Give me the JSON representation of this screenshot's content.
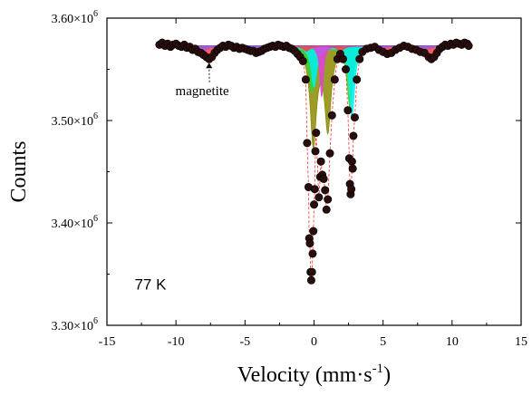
{
  "chart_data": {
    "type": "scatter",
    "title": "",
    "xlabel": "Velocity (mm·s",
    "xlabel_superscript": "-1",
    "xlabel_suffix": ")",
    "ylabel": "Counts",
    "xlim": [
      -15,
      15
    ],
    "ylim": [
      3300000,
      3600000
    ],
    "x_ticks": [
      -15,
      -10,
      -5,
      0,
      5,
      10,
      15
    ],
    "x_tick_labels": [
      "-15",
      "-10",
      "-5",
      "0",
      "5",
      "10",
      "15"
    ],
    "y_ticks": [
      3300000,
      3400000,
      3500000,
      3600000
    ],
    "y_tick_labels": [
      {
        "mantissa": "3.30×10",
        "exponent": "6"
      },
      {
        "mantissa": "3.40×10",
        "exponent": "6"
      },
      {
        "mantissa": "3.50×10",
        "exponent": "6"
      },
      {
        "mantissa": "3.60×10",
        "exponent": "6"
      }
    ],
    "grid": false,
    "legend": false,
    "annotations": [
      {
        "text": "magnetite",
        "x": -8.1,
        "y": 3525000,
        "arrow_to": {
          "x": -7.6,
          "y": 3560000
        }
      },
      {
        "text": "77 K",
        "x": -13.0,
        "y": 3335000
      }
    ],
    "baseline": 3573000,
    "fit_components": [
      {
        "name": "doublet-olive",
        "color": "#8b8b00",
        "lines": [
          {
            "center": -0.05,
            "depth": 95000,
            "width": 0.55
          },
          {
            "center": 1.0,
            "depth": 80000,
            "width": 0.55
          }
        ]
      },
      {
        "name": "doublet-green",
        "color": "#33d633",
        "lines": [
          {
            "center": -0.15,
            "depth": 45000,
            "width": 0.6
          },
          {
            "center": 2.6,
            "depth": 60000,
            "width": 0.5
          }
        ]
      },
      {
        "name": "doublet-cyan",
        "color": "#00f0f0",
        "lines": [
          {
            "center": 0.0,
            "depth": 40000,
            "width": 0.5
          },
          {
            "center": 2.75,
            "depth": 70000,
            "width": 0.45
          }
        ]
      },
      {
        "name": "doublet-magenta",
        "color": "#e040e0",
        "lines": [
          {
            "center": 0.55,
            "depth": 50000,
            "width": 0.3
          }
        ]
      },
      {
        "name": "sextet-red",
        "color": "#ff4040",
        "lines": [
          {
            "center": -7.6,
            "depth": 13000,
            "width": 0.6
          },
          {
            "center": -4.0,
            "depth": 7000,
            "width": 0.6
          },
          {
            "center": -0.55,
            "depth": 5000,
            "width": 0.6
          },
          {
            "center": 1.9,
            "depth": 5000,
            "width": 0.6
          },
          {
            "center": 5.3,
            "depth": 8000,
            "width": 0.6
          },
          {
            "center": 8.5,
            "depth": 13000,
            "width": 0.6
          }
        ]
      },
      {
        "name": "sextet-purple",
        "color": "#9a5ad0",
        "lines": [
          {
            "center": -8.0,
            "depth": 5000,
            "width": 0.8
          },
          {
            "center": -4.5,
            "depth": 3500,
            "width": 0.8
          },
          {
            "center": 4.8,
            "depth": 3500,
            "width": 0.8
          },
          {
            "center": 8.0,
            "depth": 5000,
            "width": 0.8
          }
        ]
      }
    ],
    "fit_line_color": "#ff3333",
    "data_points": [
      [
        -11.2,
        3574000
      ],
      [
        -11.0,
        3576000
      ],
      [
        -10.8,
        3573000
      ],
      [
        -10.6,
        3575000
      ],
      [
        -10.4,
        3572000
      ],
      [
        -10.2,
        3574000
      ],
      [
        -10.0,
        3575000
      ],
      [
        -9.8,
        3573000
      ],
      [
        -9.6,
        3572000
      ],
      [
        -9.4,
        3574000
      ],
      [
        -9.2,
        3571000
      ],
      [
        -9.0,
        3572000
      ],
      [
        -8.8,
        3569000
      ],
      [
        -8.6,
        3570000
      ],
      [
        -8.4,
        3567000
      ],
      [
        -8.2,
        3566000
      ],
      [
        -8.0,
        3564000
      ],
      [
        -7.8,
        3562000
      ],
      [
        -7.6,
        3560000
      ],
      [
        -7.4,
        3562000
      ],
      [
        -7.2,
        3566000
      ],
      [
        -7.0,
        3569000
      ],
      [
        -6.8,
        3571000
      ],
      [
        -6.6,
        3573000
      ],
      [
        -6.4,
        3572000
      ],
      [
        -6.2,
        3574000
      ],
      [
        -6.0,
        3573000
      ],
      [
        -5.8,
        3571000
      ],
      [
        -5.6,
        3572000
      ],
      [
        -5.4,
        3570000
      ],
      [
        -5.2,
        3571000
      ],
      [
        -5.0,
        3570000
      ],
      [
        -4.8,
        3569000
      ],
      [
        -4.6,
        3568000
      ],
      [
        -4.4,
        3568000
      ],
      [
        -4.2,
        3566000
      ],
      [
        -4.0,
        3567000
      ],
      [
        -3.8,
        3568000
      ],
      [
        -3.6,
        3570000
      ],
      [
        -3.4,
        3571000
      ],
      [
        -3.2,
        3572000
      ],
      [
        -3.0,
        3573000
      ],
      [
        -2.8,
        3572000
      ],
      [
        -2.6,
        3574000
      ],
      [
        -2.4,
        3573000
      ],
      [
        -2.2,
        3572000
      ],
      [
        -2.0,
        3573000
      ],
      [
        -1.8,
        3571000
      ],
      [
        -1.6,
        3570000
      ],
      [
        -1.4,
        3568000
      ],
      [
        -1.2,
        3565000
      ],
      [
        -1.0,
        3562000
      ],
      [
        -0.8,
        3558000
      ],
      [
        -0.6,
        3540000
      ],
      [
        -0.5,
        3478000
      ],
      [
        -0.4,
        3435000
      ],
      [
        -0.35,
        3385000
      ],
      [
        -0.3,
        3380000
      ],
      [
        -0.25,
        3352000
      ],
      [
        -0.2,
        3344000
      ],
      [
        -0.15,
        3352000
      ],
      [
        -0.1,
        3370000
      ],
      [
        -0.05,
        3392000
      ],
      [
        0.0,
        3418000
      ],
      [
        0.05,
        3433000
      ],
      [
        0.1,
        3470000
      ],
      [
        0.15,
        3488000
      ],
      [
        0.35,
        3425000
      ],
      [
        0.45,
        3445000
      ],
      [
        0.5,
        3460000
      ],
      [
        0.6,
        3447000
      ],
      [
        0.7,
        3443000
      ],
      [
        0.8,
        3432000
      ],
      [
        0.9,
        3413000
      ],
      [
        1.0,
        3423000
      ],
      [
        1.15,
        3468000
      ],
      [
        1.3,
        3505000
      ],
      [
        1.5,
        3540000
      ],
      [
        1.7,
        3560000
      ],
      [
        1.9,
        3565000
      ],
      [
        2.1,
        3560000
      ],
      [
        2.3,
        3550000
      ],
      [
        2.45,
        3510000
      ],
      [
        2.55,
        3463000
      ],
      [
        2.6,
        3438000
      ],
      [
        2.65,
        3428000
      ],
      [
        2.7,
        3433000
      ],
      [
        2.75,
        3460000
      ],
      [
        2.8,
        3453000
      ],
      [
        2.85,
        3485000
      ],
      [
        2.95,
        3503000
      ],
      [
        3.1,
        3540000
      ],
      [
        3.3,
        3560000
      ],
      [
        3.5,
        3567000
      ],
      [
        3.8,
        3570000
      ],
      [
        4.1,
        3571000
      ],
      [
        4.4,
        3572000
      ],
      [
        4.7,
        3569000
      ],
      [
        5.0,
        3567000
      ],
      [
        5.3,
        3565000
      ],
      [
        5.6,
        3566000
      ],
      [
        5.9,
        3569000
      ],
      [
        6.2,
        3571000
      ],
      [
        6.5,
        3573000
      ],
      [
        6.8,
        3572000
      ],
      [
        7.1,
        3570000
      ],
      [
        7.4,
        3569000
      ],
      [
        7.7,
        3567000
      ],
      [
        8.0,
        3566000
      ],
      [
        8.3,
        3562000
      ],
      [
        8.5,
        3560000
      ],
      [
        8.7,
        3562000
      ],
      [
        8.9,
        3566000
      ],
      [
        9.1,
        3570000
      ],
      [
        9.3,
        3572000
      ],
      [
        9.5,
        3574000
      ],
      [
        9.7,
        3573000
      ],
      [
        9.9,
        3575000
      ],
      [
        10.1,
        3574000
      ],
      [
        10.3,
        3576000
      ],
      [
        10.5,
        3575000
      ],
      [
        10.7,
        3574000
      ],
      [
        10.9,
        3576000
      ],
      [
        11.1,
        3575000
      ],
      [
        11.2,
        3573000
      ]
    ]
  }
}
